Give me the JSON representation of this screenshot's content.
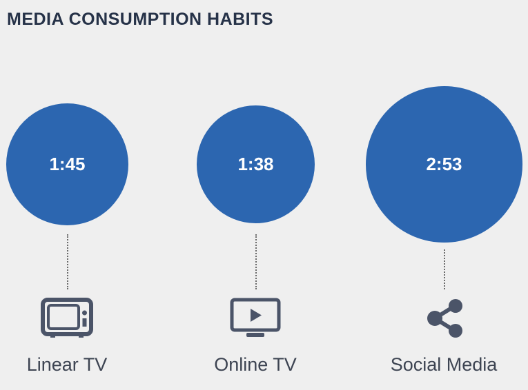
{
  "title": "MEDIA CONSUMPTION HABITS",
  "colors": {
    "bubble": "#2c66b0",
    "icon": "#4b5468",
    "title": "#263248"
  },
  "chart_data": {
    "type": "bubble",
    "unit": "hours:minutes",
    "categories": [
      "Linear TV",
      "Online TV",
      "Social Media"
    ],
    "value_labels": [
      "1:45",
      "1:38",
      "2:53"
    ],
    "values_minutes": [
      105,
      98,
      173
    ],
    "icons": [
      "tv-icon",
      "play-screen-icon",
      "share-icon"
    ]
  }
}
